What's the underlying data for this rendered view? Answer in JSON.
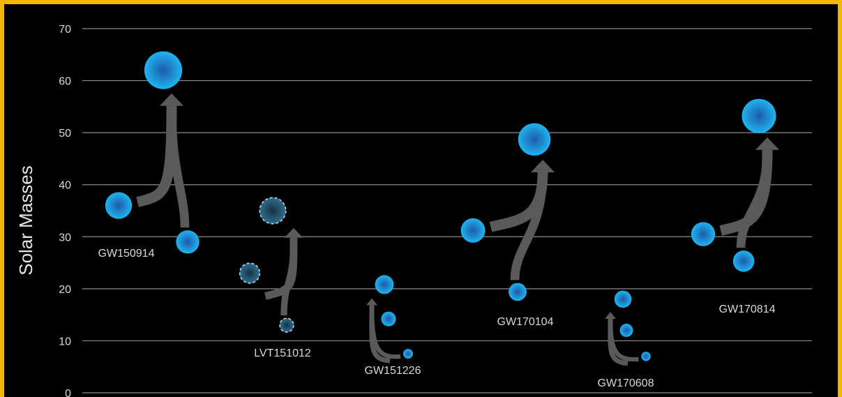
{
  "colors": {
    "frame_border": "#f2b705",
    "background": "#000000",
    "grid": "#8c8c8c",
    "bubble_center": "#1e5aa8",
    "bubble_edge": "#1fb4f0",
    "candidate_center": "#1a2f3f",
    "candidate_edge": "#2d6f93",
    "arrow": "#5a5a5a",
    "text": "#d9d9d9"
  },
  "chart_data": {
    "type": "scatter",
    "title": "",
    "xlabel": "",
    "ylabel": "Solar Masses",
    "ylim": [
      0,
      70
    ],
    "yticks": [
      0,
      10,
      20,
      30,
      40,
      50,
      60,
      70
    ],
    "grid": true,
    "events": [
      {
        "name": "GW150914",
        "primary": 36,
        "secondary": 29,
        "final": 62,
        "candidate": false
      },
      {
        "name": "LVT151012",
        "primary": 23,
        "secondary": 13,
        "final": 35,
        "candidate": true
      },
      {
        "name": "GW151226",
        "primary": 14.2,
        "secondary": 7.5,
        "final": 20.8,
        "candidate": false
      },
      {
        "name": "GW170104",
        "primary": 31.2,
        "secondary": 19.4,
        "final": 48.7,
        "candidate": false
      },
      {
        "name": "GW170608",
        "primary": 12,
        "secondary": 7,
        "final": 18,
        "candidate": false
      },
      {
        "name": "GW170814",
        "primary": 30.5,
        "secondary": 25.3,
        "final": 53.2,
        "candidate": false
      }
    ]
  }
}
